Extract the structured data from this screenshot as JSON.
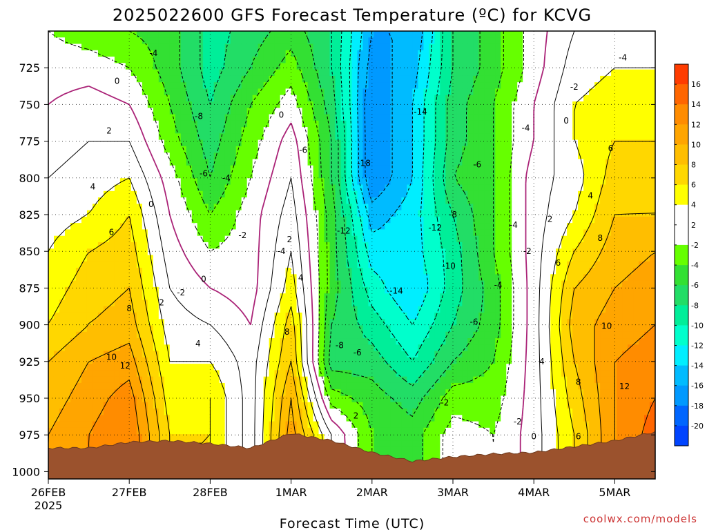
{
  "chart_data": {
    "type": "heatmap",
    "title": "2025022600 GFS Forecast Temperature (ºC) for KCVG",
    "xlabel": "Forecast Time (UTC)",
    "ylabel": "",
    "credit": "coolwx.com/models",
    "x_ticks": [
      "26FEB",
      "27FEB",
      "28FEB",
      "1MAR",
      "2MAR",
      "3MAR",
      "4MAR",
      "5MAR"
    ],
    "x_year": "2025",
    "x_range_days": [
      0,
      7.5
    ],
    "y_ticks": [
      725,
      750,
      775,
      800,
      825,
      850,
      875,
      900,
      925,
      950,
      975,
      1000
    ],
    "y_range_hpa": [
      700,
      1005
    ],
    "colorbar": {
      "labels": [
        16,
        14,
        12,
        10,
        8,
        6,
        4,
        2,
        -2,
        -4,
        -6,
        -8,
        -10,
        -12,
        -14,
        -16,
        -18,
        -20
      ],
      "colors": [
        "#ff3c00",
        "#ff6600",
        "#ff8c00",
        "#ffa500",
        "#ffbe00",
        "#ffd700",
        "#ffff00",
        "#ffffff",
        "#ffffff",
        "#66ff00",
        "#33e033",
        "#22dd66",
        "#00ee99",
        "#00ffcc",
        "#00eeff",
        "#00bbff",
        "#0099ff",
        "#0066ff",
        "#0044ff"
      ]
    },
    "temperature_profiles": [
      {
        "x_day": 0.0,
        "values": [
          [
            700,
            -2
          ],
          [
            725,
            -1
          ],
          [
            750,
            0
          ],
          [
            775,
            1
          ],
          [
            800,
            2
          ],
          [
            825,
            3
          ],
          [
            850,
            4
          ],
          [
            875,
            5
          ],
          [
            900,
            6
          ],
          [
            925,
            8
          ],
          [
            950,
            9
          ],
          [
            975,
            10
          ]
        ]
      },
      {
        "x_day": 0.5,
        "values": [
          [
            700,
            -3
          ],
          [
            725,
            -1
          ],
          [
            750,
            1
          ],
          [
            775,
            2
          ],
          [
            800,
            3
          ],
          [
            825,
            4
          ],
          [
            850,
            6
          ],
          [
            875,
            7
          ],
          [
            900,
            8
          ],
          [
            925,
            10
          ],
          [
            950,
            11
          ],
          [
            975,
            12
          ]
        ]
      },
      {
        "x_day": 1.0,
        "values": [
          [
            700,
            -4
          ],
          [
            725,
            -2
          ],
          [
            750,
            0
          ],
          [
            775,
            2
          ],
          [
            800,
            4
          ],
          [
            825,
            6
          ],
          [
            850,
            7
          ],
          [
            875,
            8
          ],
          [
            900,
            9
          ],
          [
            925,
            11
          ],
          [
            950,
            13
          ],
          [
            975,
            14
          ]
        ]
      },
      {
        "x_day": 1.5,
        "values": [
          [
            700,
            -5
          ],
          [
            725,
            -5
          ],
          [
            750,
            -4
          ],
          [
            775,
            -3
          ],
          [
            800,
            -1
          ],
          [
            825,
            0
          ],
          [
            850,
            1
          ],
          [
            875,
            2
          ],
          [
            900,
            3
          ],
          [
            925,
            4
          ],
          [
            950,
            5
          ],
          [
            975,
            6
          ]
        ]
      },
      {
        "x_day": 2.0,
        "values": [
          [
            700,
            -9
          ],
          [
            725,
            -9
          ],
          [
            750,
            -8
          ],
          [
            775,
            -7
          ],
          [
            800,
            -6
          ],
          [
            825,
            -4
          ],
          [
            850,
            -2
          ],
          [
            875,
            0
          ],
          [
            900,
            2
          ],
          [
            925,
            4
          ],
          [
            950,
            6
          ],
          [
            975,
            6
          ]
        ]
      },
      {
        "x_day": 2.5,
        "values": [
          [
            700,
            -7
          ],
          [
            725,
            -6
          ],
          [
            750,
            -4
          ],
          [
            775,
            -3
          ],
          [
            800,
            -2
          ],
          [
            825,
            -1
          ],
          [
            850,
            -1
          ],
          [
            875,
            -1
          ],
          [
            900,
            0
          ],
          [
            925,
            1
          ],
          [
            950,
            1
          ],
          [
            975,
            1
          ]
        ]
      },
      {
        "x_day": 3.0,
        "values": [
          [
            700,
            -5
          ],
          [
            725,
            -3
          ],
          [
            750,
            -1
          ],
          [
            775,
            1
          ],
          [
            800,
            2
          ],
          [
            825,
            3
          ],
          [
            850,
            4
          ],
          [
            875,
            5
          ],
          [
            900,
            7
          ],
          [
            925,
            8
          ],
          [
            950,
            10
          ],
          [
            975,
            11
          ]
        ]
      },
      {
        "x_day": 3.5,
        "values": [
          [
            700,
            -8
          ],
          [
            725,
            -8
          ],
          [
            750,
            -7
          ],
          [
            775,
            -6
          ],
          [
            800,
            -6
          ],
          [
            825,
            -5
          ],
          [
            850,
            -5
          ],
          [
            875,
            -5
          ],
          [
            900,
            -6
          ],
          [
            925,
            -7
          ],
          [
            950,
            -3
          ],
          [
            975,
            2
          ]
        ]
      },
      {
        "x_day": 4.0,
        "values": [
          [
            700,
            -16
          ],
          [
            725,
            -17
          ],
          [
            750,
            -18
          ],
          [
            775,
            -18
          ],
          [
            800,
            -18
          ],
          [
            825,
            -15
          ],
          [
            850,
            -13
          ],
          [
            875,
            -11
          ],
          [
            900,
            -9
          ],
          [
            925,
            -7
          ],
          [
            950,
            -5
          ],
          [
            975,
            -4
          ]
        ]
      },
      {
        "x_day": 4.5,
        "values": [
          [
            700,
            -16
          ],
          [
            725,
            -15
          ],
          [
            750,
            -14
          ],
          [
            775,
            -14
          ],
          [
            800,
            -14
          ],
          [
            825,
            -13
          ],
          [
            850,
            -13
          ],
          [
            875,
            -14
          ],
          [
            900,
            -12
          ],
          [
            925,
            -10
          ],
          [
            950,
            -7
          ],
          [
            975,
            -5
          ]
        ]
      },
      {
        "x_day": 5.0,
        "values": [
          [
            700,
            -8
          ],
          [
            725,
            -8
          ],
          [
            750,
            -7
          ],
          [
            775,
            -7
          ],
          [
            800,
            -6
          ],
          [
            825,
            -8
          ],
          [
            850,
            -9
          ],
          [
            875,
            -9
          ],
          [
            900,
            -8
          ],
          [
            925,
            -6
          ],
          [
            950,
            -3
          ],
          [
            975,
            -1
          ]
        ]
      },
      {
        "x_day": 5.5,
        "values": [
          [
            700,
            -5
          ],
          [
            725,
            -5
          ],
          [
            750,
            -4
          ],
          [
            775,
            -4
          ],
          [
            800,
            -4
          ],
          [
            825,
            -4
          ],
          [
            850,
            -4
          ],
          [
            875,
            -5
          ],
          [
            900,
            -5
          ],
          [
            925,
            -4
          ],
          [
            950,
            -3
          ],
          [
            975,
            -2
          ]
        ]
      },
      {
        "x_day": 6.0,
        "values": [
          [
            700,
            -1
          ],
          [
            725,
            -1
          ],
          [
            750,
            0
          ],
          [
            775,
            0
          ],
          [
            800,
            1
          ],
          [
            825,
            1
          ],
          [
            850,
            1
          ],
          [
            875,
            1
          ],
          [
            900,
            1
          ],
          [
            925,
            1
          ],
          [
            950,
            1
          ],
          [
            975,
            1
          ]
        ]
      },
      {
        "x_day": 6.5,
        "values": [
          [
            700,
            2
          ],
          [
            725,
            3
          ],
          [
            750,
            4
          ],
          [
            775,
            4
          ],
          [
            800,
            3
          ],
          [
            825,
            4
          ],
          [
            850,
            6
          ],
          [
            875,
            8
          ],
          [
            900,
            9
          ],
          [
            925,
            8
          ],
          [
            950,
            7
          ],
          [
            975,
            6
          ]
        ]
      },
      {
        "x_day": 7.0,
        "values": [
          [
            700,
            3
          ],
          [
            725,
            4
          ],
          [
            750,
            5
          ],
          [
            775,
            6
          ],
          [
            800,
            7
          ],
          [
            825,
            8
          ],
          [
            850,
            9
          ],
          [
            875,
            10
          ],
          [
            900,
            11
          ],
          [
            925,
            12
          ],
          [
            950,
            12
          ],
          [
            975,
            12
          ]
        ]
      },
      {
        "x_day": 7.5,
        "values": [
          [
            700,
            3
          ],
          [
            725,
            4
          ],
          [
            750,
            5
          ],
          [
            775,
            6
          ],
          [
            800,
            7
          ],
          [
            825,
            8
          ],
          [
            850,
            10
          ],
          [
            875,
            11
          ],
          [
            900,
            12
          ],
          [
            925,
            13
          ],
          [
            950,
            14
          ],
          [
            975,
            15
          ]
        ]
      }
    ],
    "surface_pressure": [
      [
        0,
        984
      ],
      [
        0.5,
        984
      ],
      [
        1.0,
        980
      ],
      [
        1.5,
        979
      ],
      [
        2.0,
        981
      ],
      [
        2.5,
        984
      ],
      [
        3.0,
        974
      ],
      [
        3.5,
        979
      ],
      [
        4.0,
        987
      ],
      [
        4.5,
        993
      ],
      [
        5.0,
        990
      ],
      [
        5.5,
        988
      ],
      [
        6.0,
        987
      ],
      [
        6.5,
        983
      ],
      [
        7.0,
        979
      ],
      [
        7.5,
        973
      ]
    ],
    "contour_labels": [
      {
        "text": "-4",
        "x_day": 1.3,
        "p": 715
      },
      {
        "text": "0",
        "x_day": 0.85,
        "p": 734
      },
      {
        "text": "2",
        "x_day": 0.75,
        "p": 768
      },
      {
        "text": "4",
        "x_day": 0.55,
        "p": 806
      },
      {
        "text": "6",
        "x_day": 0.78,
        "p": 837
      },
      {
        "text": "0",
        "x_day": 1.27,
        "p": 818
      },
      {
        "text": "-8",
        "x_day": 1.86,
        "p": 758
      },
      {
        "text": "-6",
        "x_day": 1.92,
        "p": 797
      },
      {
        "text": "-4",
        "x_day": 2.2,
        "p": 800
      },
      {
        "text": "0",
        "x_day": 2.88,
        "p": 757
      },
      {
        "text": "-6",
        "x_day": 3.15,
        "p": 781
      },
      {
        "text": "-18",
        "x_day": 3.9,
        "p": 790
      },
      {
        "text": "-14",
        "x_day": 4.6,
        "p": 755
      },
      {
        "text": "-6",
        "x_day": 5.3,
        "p": 791
      },
      {
        "text": "-4",
        "x_day": 5.9,
        "p": 766
      },
      {
        "text": "-2",
        "x_day": 6.5,
        "p": 738
      },
      {
        "text": "0",
        "x_day": 6.4,
        "p": 761
      },
      {
        "text": "-4",
        "x_day": 7.1,
        "p": 718
      },
      {
        "text": "6",
        "x_day": 6.95,
        "p": 780
      },
      {
        "text": "4",
        "x_day": 6.7,
        "p": 812
      },
      {
        "text": "2",
        "x_day": 6.2,
        "p": 828
      },
      {
        "text": "-4",
        "x_day": 5.75,
        "p": 832
      },
      {
        "text": "-8",
        "x_day": 5.0,
        "p": 825
      },
      {
        "text": "-12",
        "x_day": 3.65,
        "p": 836
      },
      {
        "text": "-12",
        "x_day": 4.78,
        "p": 834
      },
      {
        "text": "-2",
        "x_day": 2.4,
        "p": 839
      },
      {
        "text": "2",
        "x_day": 2.98,
        "p": 842
      },
      {
        "text": "-4",
        "x_day": 2.88,
        "p": 850
      },
      {
        "text": "4",
        "x_day": 3.12,
        "p": 868
      },
      {
        "text": "0",
        "x_day": 1.92,
        "p": 869
      },
      {
        "text": "-2",
        "x_day": 1.64,
        "p": 878
      },
      {
        "text": "2",
        "x_day": 1.4,
        "p": 885
      },
      {
        "text": "8",
        "x_day": 1.0,
        "p": 889
      },
      {
        "text": "-10",
        "x_day": 4.95,
        "p": 860
      },
      {
        "text": "-2",
        "x_day": 5.92,
        "p": 850
      },
      {
        "text": "6",
        "x_day": 6.3,
        "p": 858
      },
      {
        "text": "8",
        "x_day": 6.82,
        "p": 841
      },
      {
        "text": "-4",
        "x_day": 5.56,
        "p": 873
      },
      {
        "text": "-14",
        "x_day": 4.3,
        "p": 877
      },
      {
        "text": "-6",
        "x_day": 5.26,
        "p": 898
      },
      {
        "text": "10",
        "x_day": 6.9,
        "p": 901
      },
      {
        "text": "8",
        "x_day": 2.95,
        "p": 905
      },
      {
        "text": "4",
        "x_day": 1.85,
        "p": 913
      },
      {
        "text": "-8",
        "x_day": 3.6,
        "p": 914
      },
      {
        "text": "-6",
        "x_day": 3.82,
        "p": 919
      },
      {
        "text": "10",
        "x_day": 0.78,
        "p": 922
      },
      {
        "text": "12",
        "x_day": 0.95,
        "p": 928
      },
      {
        "text": "4",
        "x_day": 6.1,
        "p": 925
      },
      {
        "text": "8",
        "x_day": 6.55,
        "p": 939
      },
      {
        "text": "12",
        "x_day": 7.12,
        "p": 942
      },
      {
        "text": "-2",
        "x_day": 4.9,
        "p": 953
      },
      {
        "text": "2",
        "x_day": 3.8,
        "p": 962
      },
      {
        "text": "-2",
        "x_day": 5.8,
        "p": 966
      },
      {
        "text": "0",
        "x_day": 6.0,
        "p": 976
      },
      {
        "text": "6",
        "x_day": 6.55,
        "p": 976
      }
    ]
  }
}
